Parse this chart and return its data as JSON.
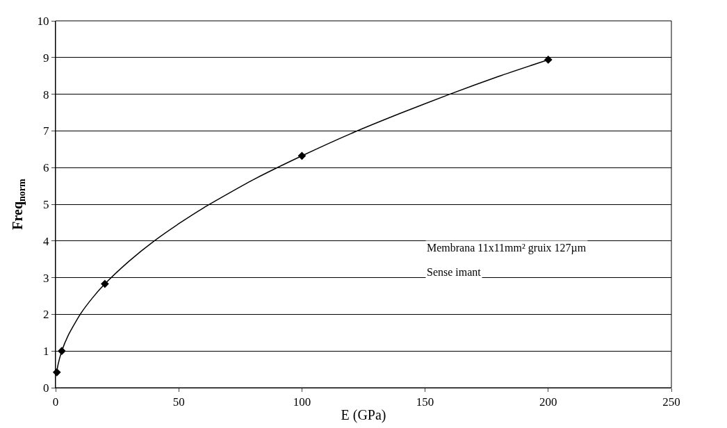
{
  "chart_data": {
    "type": "line",
    "xlabel": "E (GPa)",
    "ylabel": "Freq$_{norm}$",
    "xlim": [
      0,
      250
    ],
    "xticks": [
      0,
      50,
      100,
      150,
      200,
      250
    ],
    "ylim": [
      0,
      10
    ],
    "yticks": [
      0,
      1,
      2,
      3,
      4,
      5,
      6,
      7,
      8,
      9,
      10
    ],
    "grid": "y",
    "series": [
      {
        "marker": "none",
        "color": "#000000",
        "x": [
          0.5,
          1,
          2.5,
          5,
          10,
          15,
          20,
          30,
          40,
          50,
          60,
          80,
          100,
          120,
          140,
          160,
          180,
          200
        ],
        "values": [
          0.45,
          0.63,
          1.0,
          1.41,
          2.0,
          2.45,
          2.83,
          3.46,
          4.0,
          4.47,
          4.9,
          5.66,
          6.32,
          6.93,
          7.48,
          8.0,
          8.49,
          8.94
        ]
      },
      {
        "type": "scatter",
        "marker": "diamond",
        "color": "#000000",
        "x": [
          0.5,
          2.5,
          20,
          100,
          200
        ],
        "values": [
          0.42,
          1.0,
          2.83,
          6.32,
          8.94
        ]
      }
    ],
    "annotations": [
      "Membrana 11x11mm² gruix 127µm",
      "Sense imant"
    ]
  }
}
